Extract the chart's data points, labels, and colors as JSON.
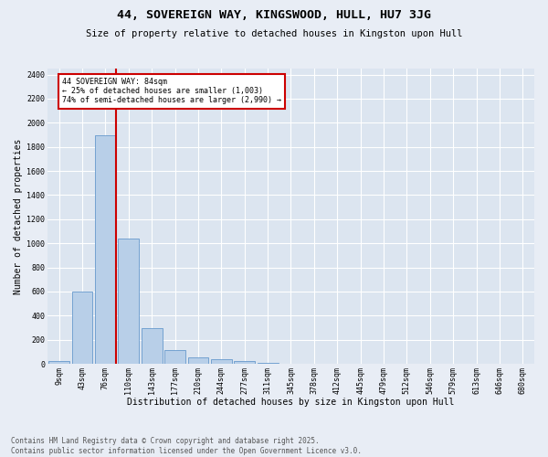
{
  "title": "44, SOVEREIGN WAY, KINGSWOOD, HULL, HU7 3JG",
  "subtitle": "Size of property relative to detached houses in Kingston upon Hull",
  "xlabel": "Distribution of detached houses by size in Kingston upon Hull",
  "ylabel": "Number of detached properties",
  "categories": [
    "9sqm",
    "43sqm",
    "76sqm",
    "110sqm",
    "143sqm",
    "177sqm",
    "210sqm",
    "244sqm",
    "277sqm",
    "311sqm",
    "345sqm",
    "378sqm",
    "412sqm",
    "445sqm",
    "479sqm",
    "512sqm",
    "546sqm",
    "579sqm",
    "613sqm",
    "646sqm",
    "680sqm"
  ],
  "values": [
    20,
    600,
    1900,
    1040,
    295,
    115,
    50,
    40,
    25,
    10,
    0,
    0,
    0,
    0,
    0,
    0,
    0,
    0,
    0,
    0,
    0
  ],
  "bar_color": "#b8cfe8",
  "bar_edge_color": "#6699cc",
  "vline_color": "#cc0000",
  "annotation_text": "44 SOVEREIGN WAY: 84sqm\n← 25% of detached houses are smaller (1,003)\n74% of semi-detached houses are larger (2,990) →",
  "annotation_box_color": "#cc0000",
  "ylim": [
    0,
    2450
  ],
  "yticks": [
    0,
    200,
    400,
    600,
    800,
    1000,
    1200,
    1400,
    1600,
    1800,
    2000,
    2200,
    2400
  ],
  "footer": "Contains HM Land Registry data © Crown copyright and database right 2025.\nContains public sector information licensed under the Open Government Licence v3.0.",
  "background_color": "#e8edf5",
  "plot_background_color": "#dce5f0",
  "grid_color": "#ffffff",
  "title_fontsize": 9.5,
  "subtitle_fontsize": 7.5,
  "axis_label_fontsize": 7,
  "tick_fontsize": 6,
  "annotation_fontsize": 6,
  "footer_fontsize": 5.5
}
